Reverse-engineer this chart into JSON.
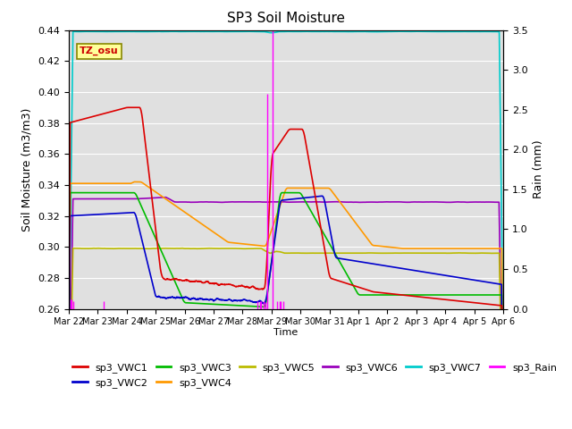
{
  "title": "SP3 Soil Moisture",
  "ylabel_left": "Soil Moisture (m3/m3)",
  "ylabel_right": "Rain (mm)",
  "xlabel": "Time",
  "ylim_left": [
    0.26,
    0.44
  ],
  "ylim_right": [
    0.0,
    3.5
  ],
  "background_color": "#e0e0e0",
  "tz_label": "TZ_osu",
  "tz_box_color": "#ffff99",
  "tz_border_color": "#cc0000",
  "colors": {
    "sp3_VWC1": "#dd0000",
    "sp3_VWC2": "#0000cc",
    "sp3_VWC3": "#00bb00",
    "sp3_VWC4": "#ff9900",
    "sp3_VWC5": "#bbbb00",
    "sp3_VWC6": "#9900bb",
    "sp3_VWC7": "#00cccc",
    "sp3_Rain": "#ff00ff"
  },
  "tick_labels": [
    "Mar 22",
    "Mar 23",
    "Mar 24",
    "Mar 25",
    "Mar 26",
    "Mar 27",
    "Mar 28",
    "Mar 29",
    "Mar 30",
    "Mar 31",
    "Apr 1",
    "Apr 2",
    "Apr 3",
    "Apr 4",
    "Apr 5",
    "Apr 6"
  ],
  "legend_entries": [
    "sp3_VWC1",
    "sp3_VWC2",
    "sp3_VWC3",
    "sp3_VWC4",
    "sp3_VWC5",
    "sp3_VWC6",
    "sp3_VWC7",
    "sp3_Rain"
  ]
}
